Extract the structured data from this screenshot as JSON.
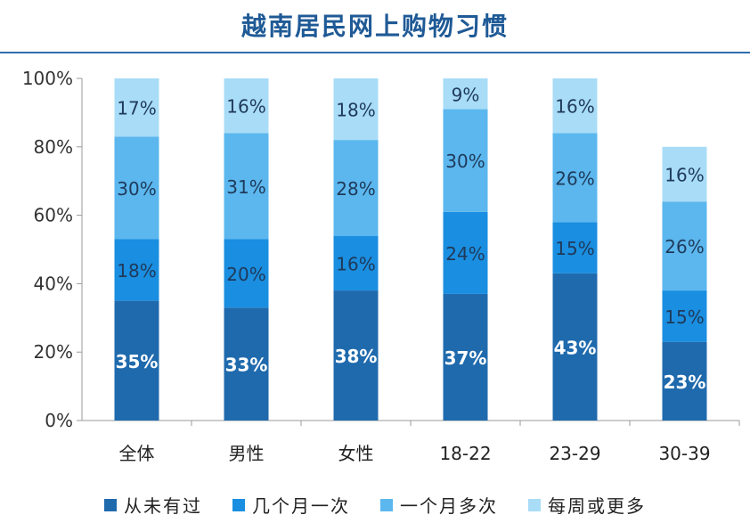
{
  "chart_data": {
    "type": "bar",
    "stacked": true,
    "title": "越南居民网上购物习惯",
    "categories": [
      "全体",
      "男性",
      "女性",
      "18-22",
      "23-29",
      "30-39"
    ],
    "ylim": [
      0,
      100
    ],
    "y_ticks": [
      "0%",
      "20%",
      "40%",
      "60%",
      "80%",
      "100%"
    ],
    "grid": false,
    "legend_position": "bottom",
    "series": [
      {
        "name": "从未有过",
        "color": "#1f6aad",
        "label_color": "#ffffff",
        "values": [
          35,
          33,
          38,
          37,
          43,
          23
        ],
        "labels": [
          "35%",
          "33%",
          "38%",
          "37%",
          "43%",
          "23%"
        ]
      },
      {
        "name": "几个月一次",
        "color": "#1a8ee0",
        "label_color": "#1f3a5a",
        "values": [
          18,
          20,
          16,
          24,
          15,
          15
        ],
        "labels": [
          "18%",
          "20%",
          "16%",
          "24%",
          "15%",
          "15%"
        ]
      },
      {
        "name": "一个月多次",
        "color": "#5bb7ee",
        "label_color": "#1f3a5a",
        "values": [
          30,
          31,
          28,
          30,
          26,
          26
        ],
        "labels": [
          "30%",
          "31%",
          "28%",
          "30%",
          "26%",
          "26%"
        ]
      },
      {
        "name": "每周或更多",
        "color": "#a8dcf7",
        "label_color": "#1f3a5a",
        "values": [
          17,
          16,
          18,
          9,
          16,
          16
        ],
        "labels": [
          "17%",
          "16%",
          "18%",
          "9%",
          "16%",
          "16%"
        ]
      }
    ]
  }
}
